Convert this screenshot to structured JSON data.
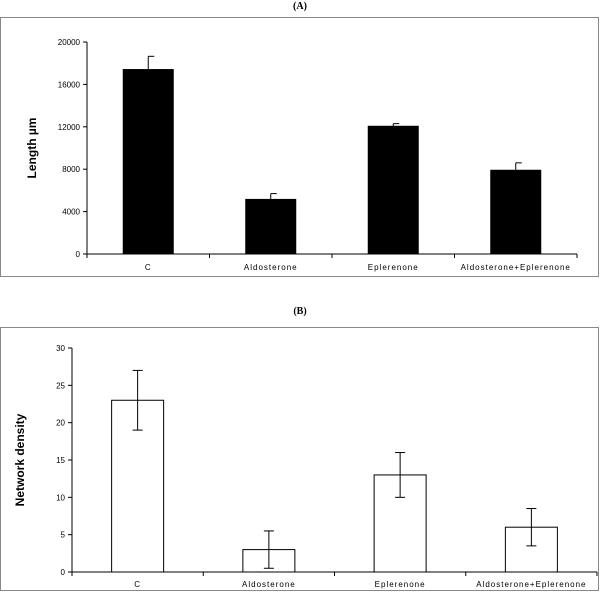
{
  "panels": [
    {
      "letter": "(A)"
    },
    {
      "letter": "(B)"
    }
  ],
  "chart_data": [
    {
      "type": "bar",
      "panel": "(A)",
      "title": "",
      "xlabel": "",
      "ylabel": "Length µm",
      "categories": [
        "C",
        "Aldosterone",
        "Eplerenone",
        "Aldosterone+Eplerenone"
      ],
      "values": [
        17400,
        5150,
        12050,
        7900
      ],
      "errors": [
        1250,
        550,
        250,
        700
      ],
      "ylim": [
        0,
        20000
      ],
      "yticks": [
        0,
        4000,
        8000,
        12000,
        16000,
        20000
      ],
      "bar_fill": "#000000",
      "grid": false,
      "legend": "none"
    },
    {
      "type": "bar",
      "panel": "(B)",
      "title": "",
      "xlabel": "",
      "ylabel": "Network density",
      "categories": [
        "C",
        "Aldosterone",
        "Eplerenone",
        "Aldosterone+Eplerenone"
      ],
      "values": [
        23,
        3,
        13,
        6
      ],
      "errors": [
        4,
        2.5,
        3,
        2.5
      ],
      "ylim": [
        0,
        30
      ],
      "yticks": [
        0,
        5,
        10,
        15,
        20,
        25,
        30
      ],
      "bar_fill": "#ffffff",
      "grid": false,
      "legend": "none"
    }
  ]
}
